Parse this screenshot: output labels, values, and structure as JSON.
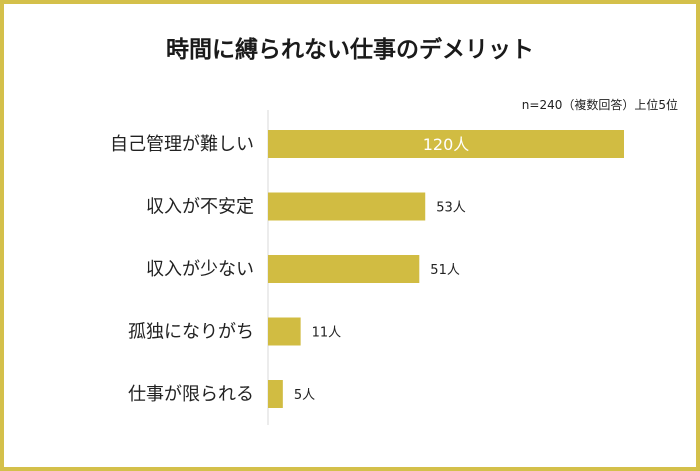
{
  "title": "時間に縛られない仕事のデメリット",
  "note": "n=240（複数回答）上位5位",
  "colors": {
    "bar": "#d1bc42",
    "border": "#d4c04a",
    "axis": "#d9d9d9"
  },
  "chart_data": {
    "type": "bar",
    "orientation": "horizontal",
    "categories": [
      "自己管理が難しい",
      "収入が不安定",
      "収入が少ない",
      "孤独になりがち",
      "仕事が限られる"
    ],
    "values": [
      120,
      53,
      51,
      11,
      5
    ],
    "data_labels": [
      "120人",
      "53人",
      "51人",
      "11人",
      "5人"
    ],
    "title": "時間に縛られない仕事のデメリット",
    "xlim": [
      0,
      120
    ],
    "grid": false,
    "legend": "none"
  }
}
